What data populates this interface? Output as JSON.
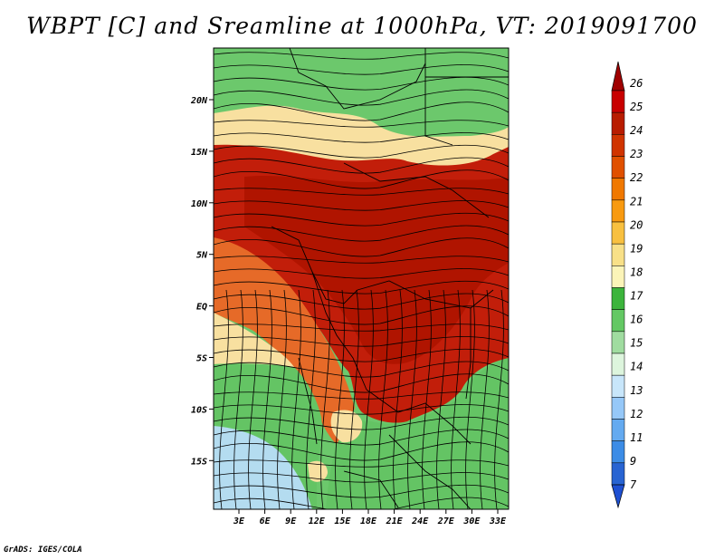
{
  "title": "WBPT [C] and Sreamline at 1000hPa, VT: 2019091700",
  "footer": "GrADS: IGES/COLA",
  "map": {
    "lon_labels": [
      "3E",
      "6E",
      "9E",
      "12E",
      "15E",
      "18E",
      "21E",
      "24E",
      "27E",
      "30E",
      "33E"
    ],
    "lat_labels": [
      "20N",
      "15N",
      "10N",
      "5N",
      "EQ",
      "5S",
      "10S",
      "15S"
    ]
  },
  "colorbar": {
    "labels": [
      "26",
      "25",
      "24",
      "23",
      "22",
      "21",
      "20",
      "19",
      "18",
      "17",
      "16",
      "15",
      "14",
      "13",
      "12",
      "11",
      "9",
      "7"
    ],
    "colors": [
      "#c80000",
      "#b81c00",
      "#d03400",
      "#e05000",
      "#f07800",
      "#f89a10",
      "#f8c040",
      "#f8e088",
      "#fbf4b8",
      "#3cb43c",
      "#64c864",
      "#a0dca0",
      "#ddf5dd",
      "#c8e6fa",
      "#96c8f8",
      "#64aaf0",
      "#3c8ce6",
      "#2864d2"
    ],
    "top_arrow_color": "#a00000",
    "bottom_arrow_color": "#1e50d2"
  },
  "palette": {
    "ocean": "#a8dca8",
    "north_green": "#6cc86c",
    "sahel": "#f8e0a0",
    "hot": "#c21e0a",
    "orange": "#e66a28",
    "south_green": "#64c464",
    "light_blue": "#b4dcf0"
  }
}
